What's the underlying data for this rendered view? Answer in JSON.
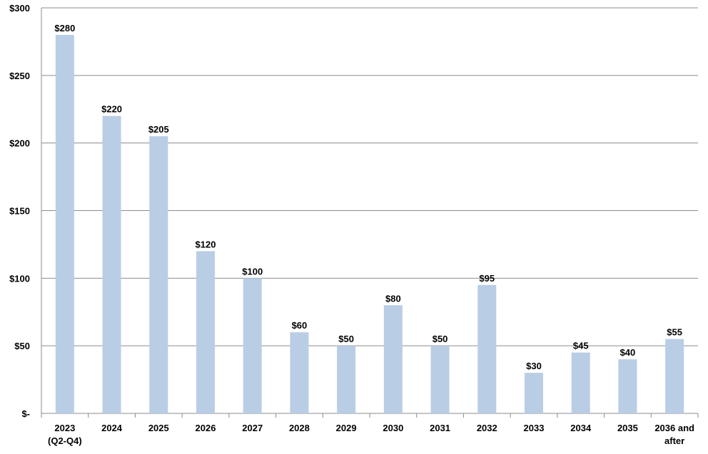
{
  "chart_data": {
    "type": "bar",
    "categories": [
      "2023\n(Q2-Q4)",
      "2024",
      "2025",
      "2026",
      "2027",
      "2028",
      "2029",
      "2030",
      "2031",
      "2032",
      "2033",
      "2034",
      "2035",
      "2036 and\nafter"
    ],
    "values": [
      280,
      220,
      205,
      120,
      100,
      60,
      50,
      80,
      50,
      95,
      30,
      45,
      40,
      55
    ],
    "value_labels": [
      "$280",
      "$220",
      "$205",
      "$120",
      "$100",
      "$60",
      "$50",
      "$80",
      "$50",
      "$95",
      "$30",
      "$45",
      "$40",
      "$55"
    ],
    "color": "#b9cde5",
    "ylim": [
      0,
      300
    ],
    "yticks": [
      {
        "value": 0,
        "label": "$-"
      },
      {
        "value": 50,
        "label": "$50"
      },
      {
        "value": 100,
        "label": "$100"
      },
      {
        "value": 150,
        "label": "$150"
      },
      {
        "value": 200,
        "label": "$200"
      },
      {
        "value": 250,
        "label": "$250"
      },
      {
        "value": 300,
        "label": "$300"
      }
    ],
    "grid": true
  }
}
